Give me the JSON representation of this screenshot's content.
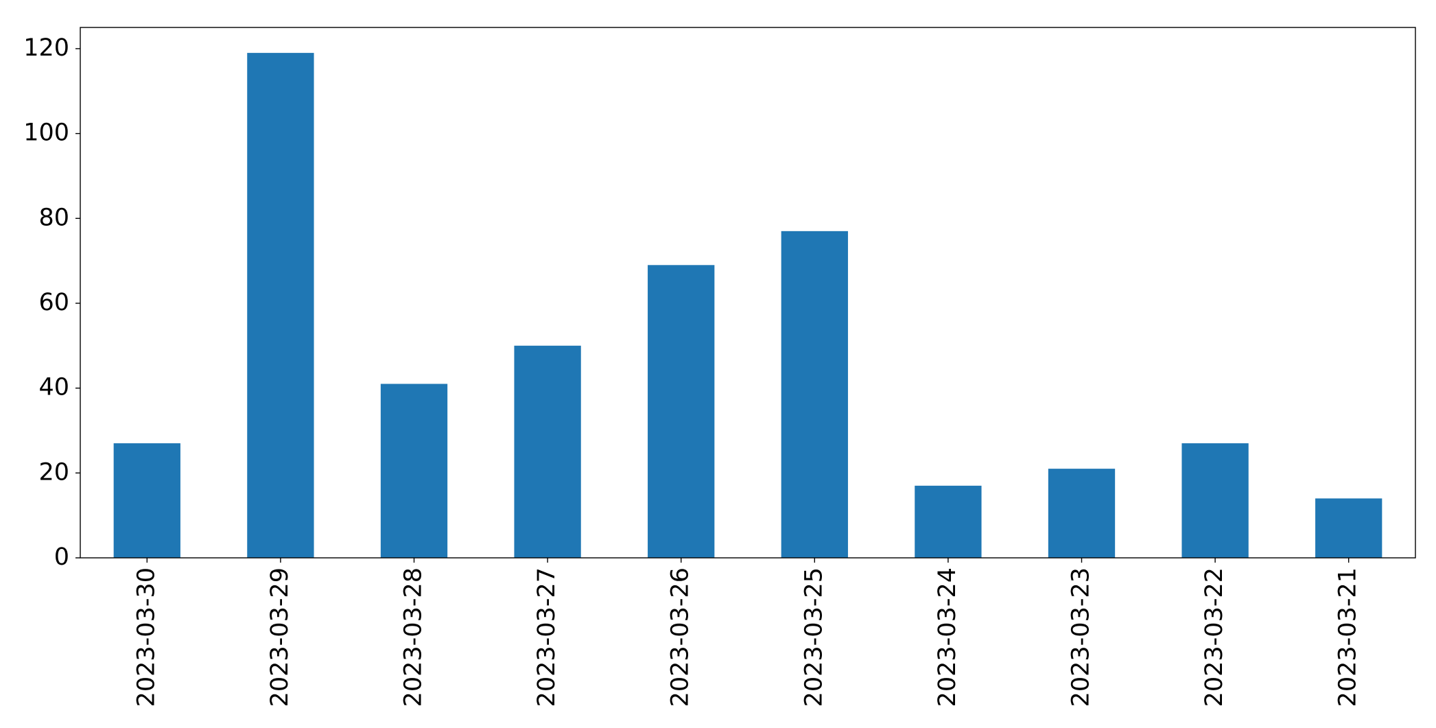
{
  "chart_data": {
    "type": "bar",
    "categories": [
      "2023-03-30",
      "2023-03-29",
      "2023-03-28",
      "2023-03-27",
      "2023-03-26",
      "2023-03-25",
      "2023-03-24",
      "2023-03-23",
      "2023-03-22",
      "2023-03-21"
    ],
    "values": [
      27,
      119,
      41,
      50,
      69,
      77,
      17,
      21,
      27,
      14
    ],
    "color": "#1f77b4",
    "ylim": [
      0,
      125
    ],
    "yticks": [
      0,
      20,
      40,
      60,
      80,
      100,
      120
    ],
    "grid": false
  }
}
